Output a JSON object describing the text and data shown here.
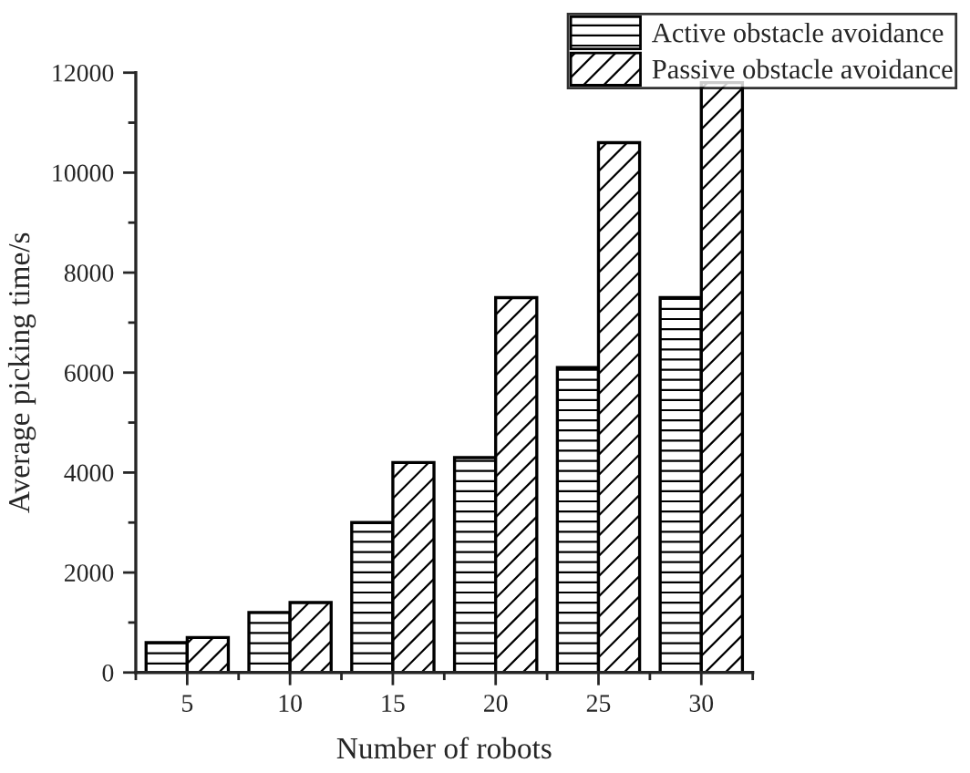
{
  "chart_data": {
    "type": "bar",
    "xlabel": "Number of robots",
    "ylabel": "Average picking time/s",
    "categories": [
      "5",
      "10",
      "15",
      "20",
      "25",
      "30"
    ],
    "series": [
      {
        "name": "Active obstacle avoidance",
        "color": "#000000",
        "values": [
          600,
          1200,
          3000,
          4300,
          6100,
          7500
        ]
      },
      {
        "name": "Passive obstacle avoidance",
        "color": "#000000",
        "values": [
          700,
          1400,
          4200,
          7500,
          10600,
          11800
        ]
      }
    ],
    "ylim": [
      0,
      12000
    ],
    "yticks": [
      0,
      2000,
      4000,
      6000,
      8000,
      10000,
      12000
    ],
    "grid": false,
    "legend": "top right"
  }
}
